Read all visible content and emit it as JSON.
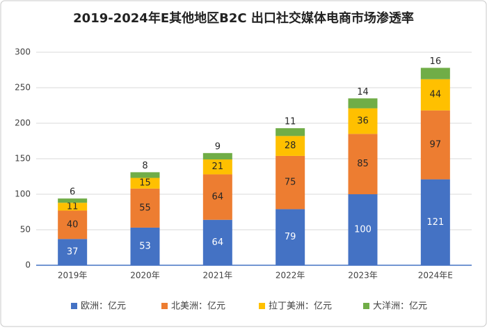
{
  "chart_data": {
    "type": "stacked_bar",
    "title": "2019-2024年E其他地区B2C 出口社交媒体电商市场渗透率",
    "categories": [
      "2019年",
      "2020年",
      "2021年",
      "2022年",
      "2023年",
      "2024年E"
    ],
    "series": [
      {
        "name": "欧洲：亿元",
        "color": "#4472c4",
        "values": [
          37,
          53,
          64,
          79,
          100,
          121
        ]
      },
      {
        "name": "北美洲：亿元",
        "color": "#ed7d31",
        "values": [
          40,
          55,
          64,
          75,
          85,
          97
        ]
      },
      {
        "name": "拉丁美洲：亿元",
        "color": "#ffc000",
        "values": [
          11,
          15,
          21,
          28,
          36,
          44
        ]
      },
      {
        "name": "大洋洲：亿元",
        "color": "#70ad47",
        "values": [
          6,
          8,
          9,
          11,
          14,
          16
        ]
      }
    ],
    "ylim": [
      0,
      300
    ],
    "yticks": [
      0,
      50,
      100,
      150,
      200,
      250,
      300
    ],
    "grid": true,
    "legend": "bottom"
  }
}
